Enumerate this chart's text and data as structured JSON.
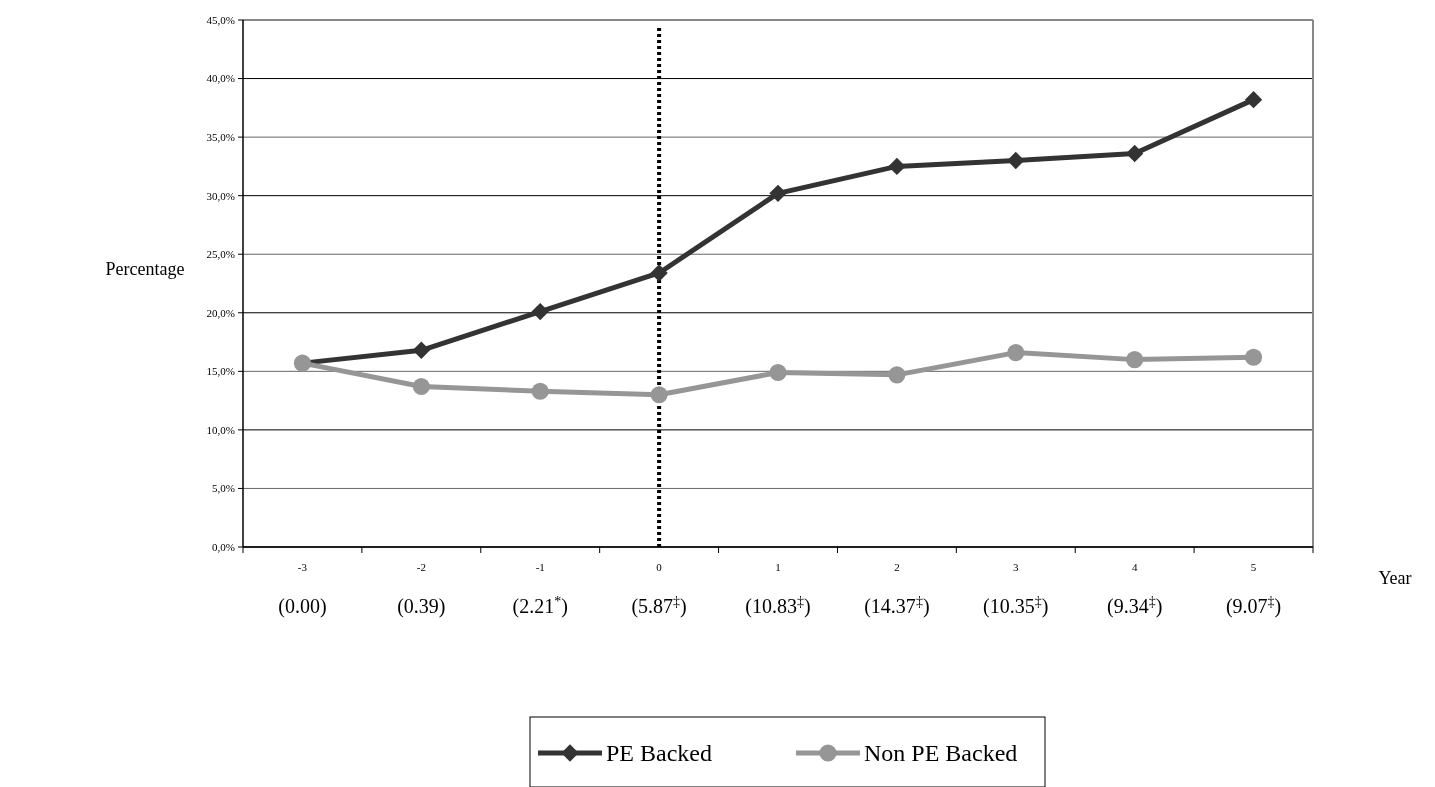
{
  "chart_data": {
    "type": "line",
    "xlabel": "Year",
    "ylabel": "Percentage",
    "categories": [
      "-3",
      "-2",
      "-1",
      "0",
      "1",
      "2",
      "3",
      "4",
      "5"
    ],
    "series": [
      {
        "name": "PE Backed",
        "color": "#333333",
        "marker": "diamond",
        "values": [
          15.7,
          16.8,
          20.1,
          23.4,
          30.2,
          32.5,
          33.0,
          33.6,
          38.2
        ]
      },
      {
        "name": "Non PE Backed",
        "color": "#969696",
        "marker": "circle",
        "values": [
          15.7,
          13.7,
          13.3,
          13.0,
          14.9,
          14.7,
          16.6,
          16.0,
          16.2
        ]
      }
    ],
    "ylim": [
      0,
      45
    ],
    "yticks": [
      {
        "value": 0,
        "label": "0,0%"
      },
      {
        "value": 5,
        "label": "5,0%"
      },
      {
        "value": 10,
        "label": "10,0%"
      },
      {
        "value": 15,
        "label": "15,0%"
      },
      {
        "value": 20,
        "label": "20,0%"
      },
      {
        "value": 25,
        "label": "25,0%"
      },
      {
        "value": 30,
        "label": "30,0%"
      },
      {
        "value": 35,
        "label": "35,0%"
      },
      {
        "value": 40,
        "label": "40,0%"
      },
      {
        "value": 45,
        "label": "45,0%"
      }
    ],
    "grid": "y",
    "legend": "bottom",
    "line_style": "solid",
    "ref_lines": [
      {
        "axis": "x",
        "value": "0",
        "line_style": "dotted",
        "color": "#000000"
      }
    ],
    "annotations": [
      "(0.00)",
      "(0.39)",
      "(2.21$^{*}$)",
      "(5.87$^{‡}$)",
      "(10.83$^{‡}$)",
      "(14.37$^{‡}$)",
      "(10.35$^{‡}$)",
      "(9.34$^{‡}$)",
      "(9.07$^{‡}$)"
    ]
  }
}
